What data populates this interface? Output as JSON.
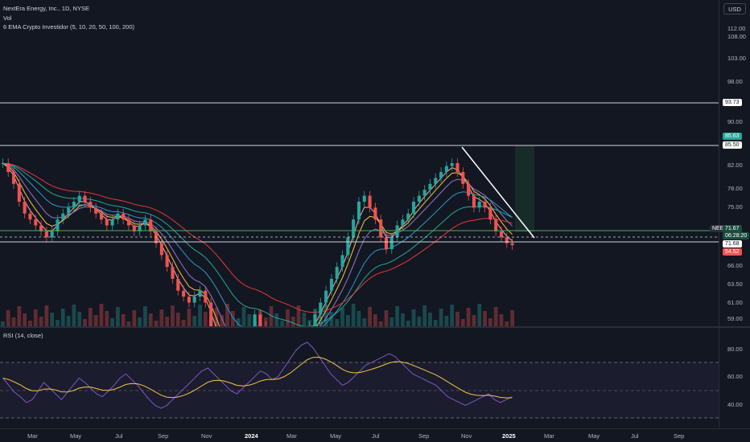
{
  "legend": {
    "title": "NextEra Energy, Inc., 1D, NYSE",
    "vol": "Vol",
    "ema": "6 EMA Crypto Investidor (5, 10, 20, 50, 100, 200)",
    "rsi": "RSI (14, close)"
  },
  "currency": "USD",
  "price_axis": [
    "112.00",
    "108.00",
    "103.00",
    "98.00",
    "90.00",
    "82.00",
    "78.00",
    "75.00",
    "66.00",
    "63.50",
    "61.00",
    "59.00"
  ],
  "rsi_axis": [
    "80.00",
    "60.00",
    "40.00"
  ],
  "time_axis": [
    "Mar",
    "May",
    "Jul",
    "Sep",
    "Nov",
    "2024",
    "Mar",
    "May",
    "Jul",
    "Sep",
    "Nov",
    "2025",
    "Mar",
    "May",
    "Jul",
    "Sep"
  ],
  "tags": {
    "level_93": "93.73",
    "level_85_63": "85.63",
    "level_85_50": "85.50",
    "symbol": "NEE",
    "last_price": "71.67",
    "countdown": "06:28:20",
    "level_71": "71.68",
    "red_tag": "54.52"
  },
  "colors": {
    "up": "#26a69a",
    "down": "#ef5350",
    "ema5": "#f7a8a8",
    "ema10": "#f5c542",
    "ema20": "#9575cd",
    "ema50": "#2a9cc9",
    "ema100": "#26a69a",
    "ema200": "#e53935",
    "rsi": "#7e57c2",
    "rsi_ma": "#f5c542",
    "trendline": "#ffffff",
    "support": "#4caf50"
  },
  "chart_data": {
    "type": "candlestick",
    "y_range": [
      58,
      113
    ],
    "horizontal_levels": [
      93.73,
      85.5,
      71.68
    ],
    "close_series": [
      85.5,
      84,
      82,
      79,
      77,
      76,
      75,
      74,
      73,
      74,
      76,
      77,
      78,
      79,
      80,
      79,
      78,
      77,
      76,
      75,
      76,
      77,
      76,
      75,
      74,
      75,
      76,
      74,
      72,
      70,
      68,
      66,
      64,
      63,
      62,
      63,
      64,
      62,
      58,
      55,
      52,
      50,
      49,
      51,
      54,
      57,
      60,
      58,
      56,
      54,
      55,
      57,
      56,
      55,
      54,
      56,
      58,
      60,
      62,
      64,
      66,
      68,
      70,
      73,
      76,
      79,
      80,
      78,
      76,
      73,
      71,
      73,
      75,
      76,
      77,
      79,
      80,
      81,
      82,
      83,
      84,
      85,
      85.5,
      84,
      82,
      80,
      78,
      79,
      78,
      76,
      74,
      73,
      72,
      71.67
    ],
    "rsi_series": [
      55,
      50,
      45,
      42,
      38,
      40,
      46,
      52,
      48,
      44,
      40,
      45,
      50,
      55,
      52,
      48,
      44,
      42,
      46,
      50,
      55,
      58,
      54,
      50,
      45,
      40,
      36,
      34,
      36,
      40,
      44,
      48,
      52,
      56,
      60,
      62,
      58,
      54,
      50,
      46,
      44,
      48,
      52,
      56,
      60,
      58,
      54,
      56,
      62,
      68,
      74,
      78,
      80,
      76,
      70,
      64,
      58,
      54,
      50,
      52,
      56,
      60,
      64,
      66,
      68,
      70,
      72,
      70,
      66,
      62,
      58,
      56,
      54,
      52,
      50,
      46,
      42,
      40,
      38,
      36,
      38,
      40,
      42,
      44,
      40,
      38,
      40,
      42
    ],
    "rsi_levels": [
      70,
      50,
      30
    ],
    "rsi_range": [
      20,
      90
    ]
  }
}
